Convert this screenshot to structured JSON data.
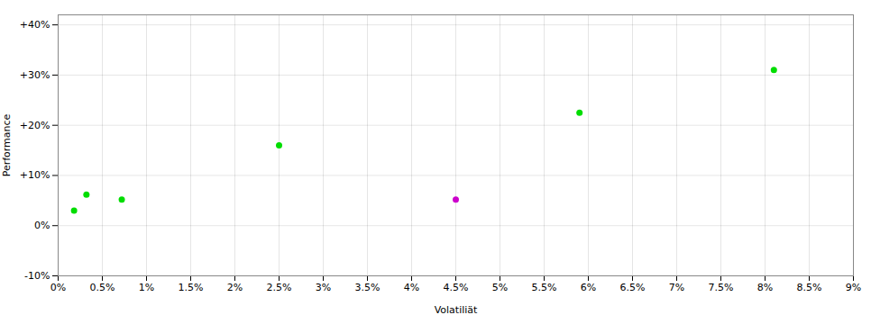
{
  "chart_data": {
    "type": "scatter",
    "xlabel": "Volatiliät",
    "ylabel": "Performance",
    "series": [
      {
        "color": "#00dd00",
        "x": [
          0.18,
          0.32,
          0.72,
          2.5,
          5.9,
          8.1
        ],
        "values": [
          3.0,
          6.2,
          5.2,
          16.0,
          22.5,
          31.0
        ]
      },
      {
        "color": "#cc00cc",
        "x": [
          4.5
        ],
        "values": [
          5.2
        ]
      }
    ],
    "xlim": [
      0,
      9
    ],
    "ylim": [
      -10,
      42
    ],
    "xticks": [
      {
        "value": 0,
        "label": "0%"
      },
      {
        "value": 0.5,
        "label": "0.5%"
      },
      {
        "value": 1.0,
        "label": "1%"
      },
      {
        "value": 1.5,
        "label": "1.5%"
      },
      {
        "value": 2.0,
        "label": "2%"
      },
      {
        "value": 2.5,
        "label": "2.5%"
      },
      {
        "value": 3.0,
        "label": "3%"
      },
      {
        "value": 3.5,
        "label": "3.5%"
      },
      {
        "value": 4.0,
        "label": "4%"
      },
      {
        "value": 4.5,
        "label": "4.5%"
      },
      {
        "value": 5.0,
        "label": "5%"
      },
      {
        "value": 5.5,
        "label": "5.5%"
      },
      {
        "value": 6.0,
        "label": "6%"
      },
      {
        "value": 6.5,
        "label": "6.5%"
      },
      {
        "value": 7.0,
        "label": "7%"
      },
      {
        "value": 7.5,
        "label": "7.5%"
      },
      {
        "value": 8.0,
        "label": "8%"
      },
      {
        "value": 8.5,
        "label": "8.5%"
      },
      {
        "value": 9.0,
        "label": "9%"
      }
    ],
    "yticks": [
      {
        "value": -10,
        "label": "-10%"
      },
      {
        "value": 0,
        "label": "0%"
      },
      {
        "value": 10,
        "label": "+10%"
      },
      {
        "value": 20,
        "label": "+20%"
      },
      {
        "value": 30,
        "label": "+30%"
      },
      {
        "value": 40,
        "label": "+40%"
      }
    ],
    "grid": true
  }
}
